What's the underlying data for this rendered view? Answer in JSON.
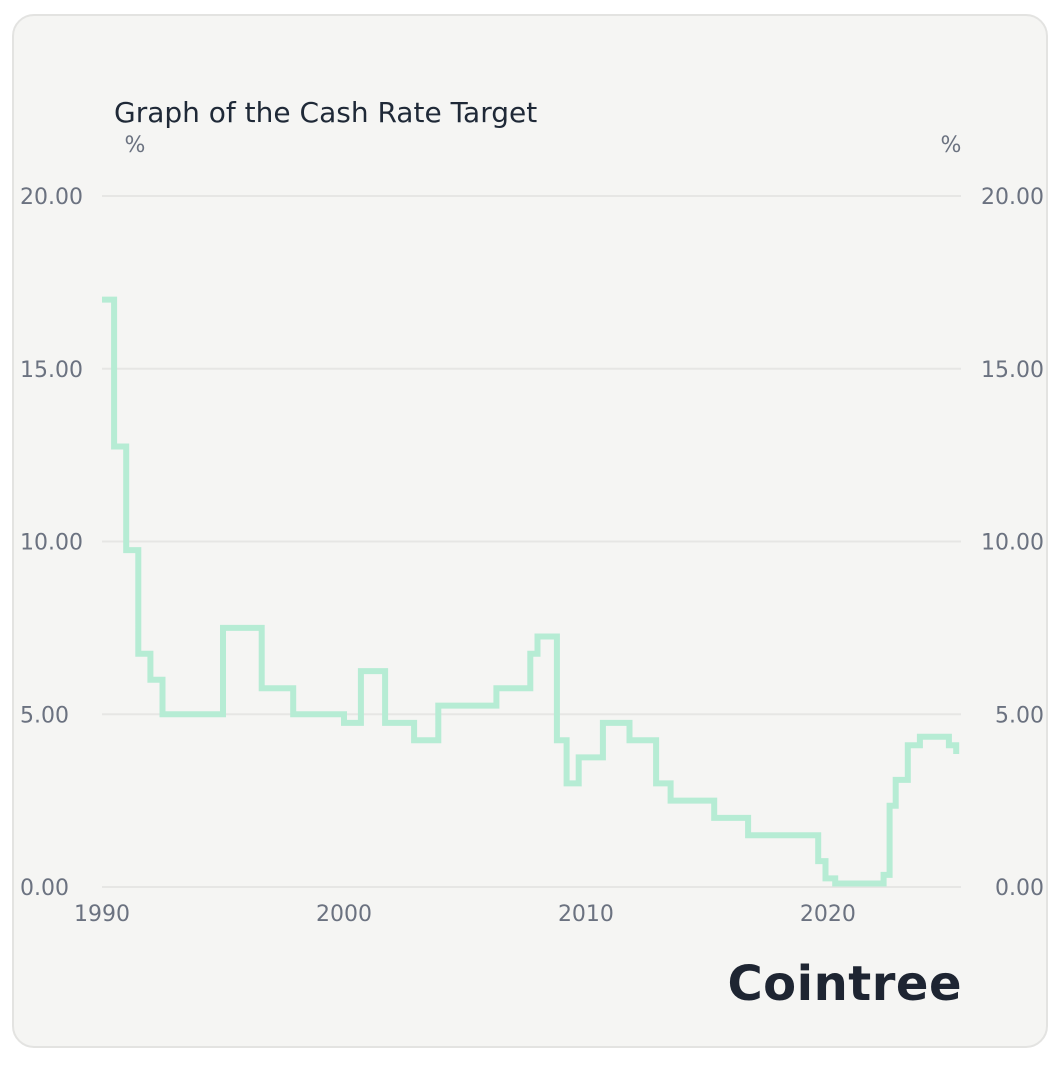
{
  "chart_data": {
    "type": "line",
    "title": "Graph of the Cash Rate Target",
    "y_unit_left": "%",
    "y_unit_right": "%",
    "xlabel": "",
    "ylabel": "",
    "xlim": [
      1990,
      2025.5
    ],
    "ylim": [
      0,
      20
    ],
    "x_ticks": [
      1990,
      2000,
      2010,
      2020
    ],
    "x_tick_labels": [
      "1990",
      "2000",
      "2010",
      "2020"
    ],
    "y_ticks": [
      0,
      5,
      10,
      15,
      20
    ],
    "y_tick_labels": [
      "0.00",
      "5.00",
      "10.00",
      "15.00",
      "20.00"
    ],
    "grid": true,
    "line_color": "#b6ecd4",
    "grid_color": "#e6e6e4",
    "series": [
      {
        "step": "post",
        "x": [
          1990.0,
          1990.5,
          1991.0,
          1991.5,
          1992.0,
          1992.5,
          1995.0,
          1996.6,
          1997.9,
          2000.0,
          2000.7,
          2001.7,
          2002.9,
          2003.9,
          2006.3,
          2007.7,
          2008.0,
          2008.8,
          2009.2,
          2009.7,
          2010.7,
          2011.8,
          2012.9,
          2013.5,
          2015.3,
          2016.7,
          2019.6,
          2019.9,
          2020.3,
          2021.0,
          2022.3,
          2022.55,
          2022.8,
          2023.3,
          2023.8,
          2025.0,
          2025.3
        ],
        "y": [
          17.0,
          12.75,
          9.75,
          6.75,
          6.0,
          5.0,
          7.5,
          5.75,
          5.0,
          4.75,
          6.25,
          4.75,
          4.25,
          5.25,
          5.75,
          6.75,
          7.25,
          4.25,
          3.0,
          3.75,
          4.75,
          4.25,
          3.0,
          2.5,
          2.0,
          1.5,
          0.75,
          0.25,
          0.1,
          0.1,
          0.35,
          2.35,
          3.1,
          4.1,
          4.35,
          4.1,
          3.85
        ]
      }
    ]
  },
  "brand": {
    "name": "Cointree"
  }
}
